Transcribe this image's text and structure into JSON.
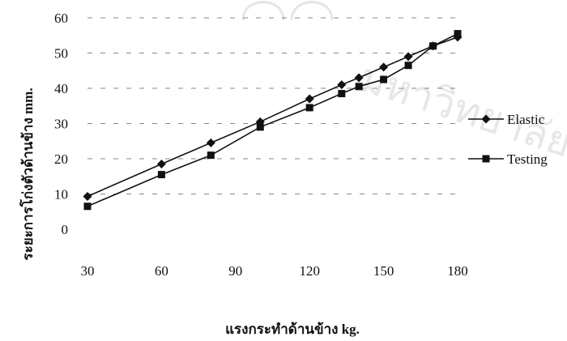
{
  "chart_data": {
    "type": "line",
    "title": "",
    "xlabel": "แรงกระทำด้านข้าง kg.",
    "ylabel": "ระยะการโก่งตัวด้านข้าง mm.",
    "x_ticks": [
      "30",
      "60",
      "90",
      "120",
      "150",
      "180"
    ],
    "y_ticks": [
      "0",
      "10",
      "20",
      "30",
      "40",
      "50",
      "60"
    ],
    "xlim": [
      30,
      180
    ],
    "ylim": [
      0,
      60
    ],
    "grid": true,
    "legend_position": "right",
    "series": [
      {
        "name": "Elastic",
        "marker": "diamond",
        "color": "#111111",
        "x": [
          30,
          60,
          80,
          100,
          120,
          133,
          140,
          150,
          160,
          170,
          180
        ],
        "y": [
          9.3,
          18.5,
          24.5,
          30.5,
          37,
          41,
          43,
          46,
          49,
          52,
          54.5
        ]
      },
      {
        "name": "Testing",
        "marker": "square",
        "color": "#111111",
        "x": [
          30,
          60,
          80,
          100,
          120,
          133,
          140,
          150,
          160,
          170,
          180
        ],
        "y": [
          6.5,
          15.5,
          21,
          29,
          34.5,
          38.5,
          40.5,
          42.5,
          46.5,
          52,
          55.5
        ]
      }
    ],
    "watermark_text": "มหาวิทยาลัยเชียงใหม่"
  }
}
